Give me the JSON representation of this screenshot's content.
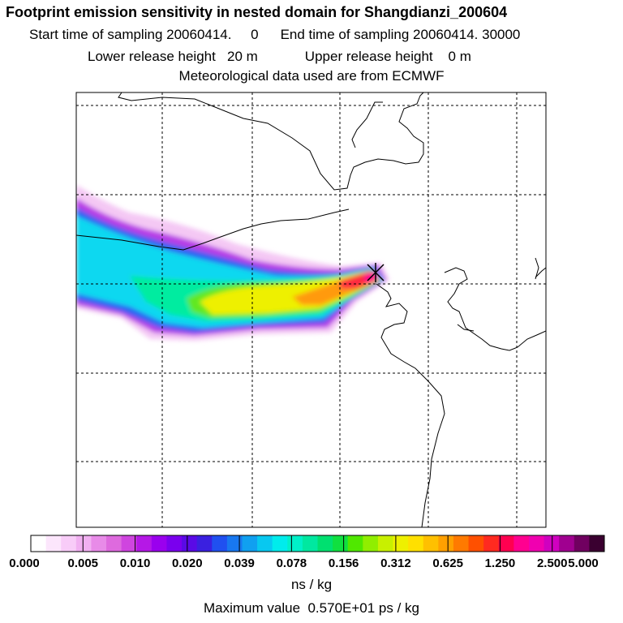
{
  "header": {
    "title": "Footprint emission sensitivity in nested domain for Shangdianzi_200604",
    "start_label": "Start time of sampling 20060414.     0",
    "end_label": "End time of sampling 20060414. 30000",
    "lower_label": "Lower release height   20 m",
    "upper_label": "Upper release height    0 m",
    "met_label": "Meteorological data used are from ECMWF"
  },
  "map": {
    "station_marker": "station-cross-icon",
    "grid": "dashed lat/lon lines"
  },
  "colorbar": {
    "colors": [
      "#ffffff",
      "#fce6fc",
      "#f8ccf8",
      "#f1b0f1",
      "#e88be8",
      "#de6ade",
      "#cf45df",
      "#b518e6",
      "#9a00ee",
      "#7a00ee",
      "#5a0ae6",
      "#3a20e0",
      "#2050f0",
      "#1878f0",
      "#10a0f0",
      "#08c8f0",
      "#00ecec",
      "#00f0c8",
      "#00e8a0",
      "#00e070",
      "#10e040",
      "#50e800",
      "#90ee00",
      "#c8f000",
      "#eef000",
      "#ffe000",
      "#ffc000",
      "#ffa000",
      "#ff7a00",
      "#ff5000",
      "#ff2a20",
      "#ff0050",
      "#ff0090",
      "#f000b0",
      "#d000c0",
      "#a00090",
      "#700060",
      "#3a0030"
    ],
    "ticks": [
      "0.000",
      "0.005",
      "0.010",
      "0.020",
      "0.039",
      "0.078",
      "0.156",
      "0.312",
      "0.625",
      "1.250",
      "2.500",
      "5.000"
    ],
    "unit": "ns / kg"
  },
  "max_value": "Maximum value  0.570E+01 ps / kg"
}
